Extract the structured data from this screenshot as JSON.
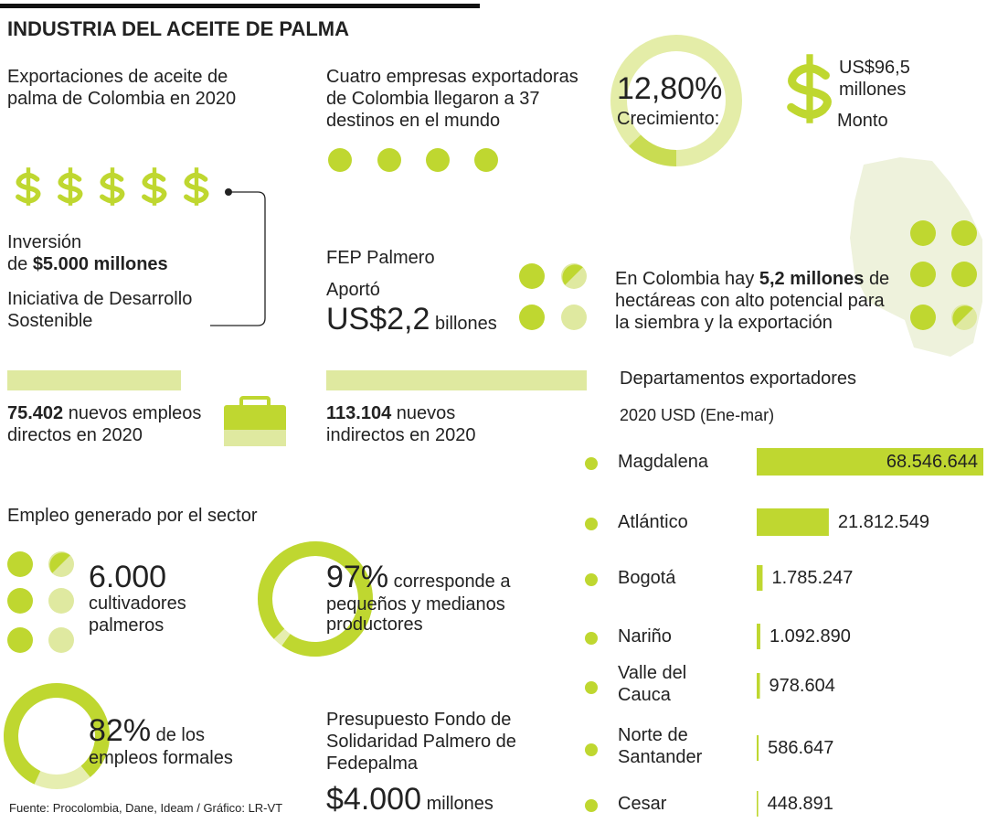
{
  "title": "INDUSTRIA DEL ACEITE DE PALMA",
  "exports": "Exportaciones de aceite de palma de Colombia en 2020",
  "companies": "Cuatro empresas exportadoras de Colombia llegaron a 37 destinos en el mundo",
  "growth": {
    "percent": 12.8,
    "percent_label": "12,80%",
    "label": "Crecimiento:"
  },
  "amount": {
    "value": "US$96,5 millones",
    "label": "Monto"
  },
  "investment": {
    "label": "Inversión",
    "prefix": "de",
    "value": "$5.000 millones",
    "initiative": "Iniciativa de Desarrollo Sostenible"
  },
  "fep": {
    "title": "FEP Palmero",
    "label": "Aportó",
    "value": "US$2,2",
    "unit": "billones"
  },
  "hectares": {
    "prefix": "En Colombia hay",
    "value": "5,2 millones",
    "text": "de hectáreas con alto potencial para la siembra y la exportación"
  },
  "jobs": [
    {
      "value": 75402,
      "value_label": "75.402",
      "text": "nuevos empleos directos en 2020"
    },
    {
      "value": 113104,
      "value_label": "113.104",
      "text": "nuevos indirectos en 2020"
    }
  ],
  "employment": {
    "title": "Empleo generado por el sector",
    "growers": {
      "value": "6.000",
      "text": "cultivadores palmeros"
    },
    "small": {
      "percent": 97,
      "percent_label": "97%",
      "text": "corresponde a pequeños y medianos productores"
    },
    "formal": {
      "percent": 82,
      "percent_label": "82%",
      "text": "de los empleos formales"
    }
  },
  "budget": {
    "text": "Presupuesto Fondo de Solidaridad Palmero de Fedepalma",
    "value": "$4.000",
    "unit": "millones"
  },
  "departments": {
    "title": "Departamentos exportadores",
    "subtitle": "2020 USD (Ene-mar)",
    "rows": [
      {
        "name": "Magdalena",
        "value": 68546644,
        "value_label": "68.546.644"
      },
      {
        "name": "Atlántico",
        "value": 21812549,
        "value_label": "21.812.549"
      },
      {
        "name": "Bogotá",
        "value": 1785247,
        "value_label": "1.785.247"
      },
      {
        "name": "Nariño",
        "value": 1092890,
        "value_label": "1.092.890"
      },
      {
        "name": "Valle del Cauca",
        "value": 978604,
        "value_label": "978.604"
      },
      {
        "name": "Norte de Santander",
        "value": 586647,
        "value_label": "586.647"
      },
      {
        "name": "Cesar",
        "value": 448891,
        "value_label": "448.891"
      }
    ]
  },
  "source": "Fuente: Procolombia, Dane, Ideam / Gráfico: LR-VT"
}
